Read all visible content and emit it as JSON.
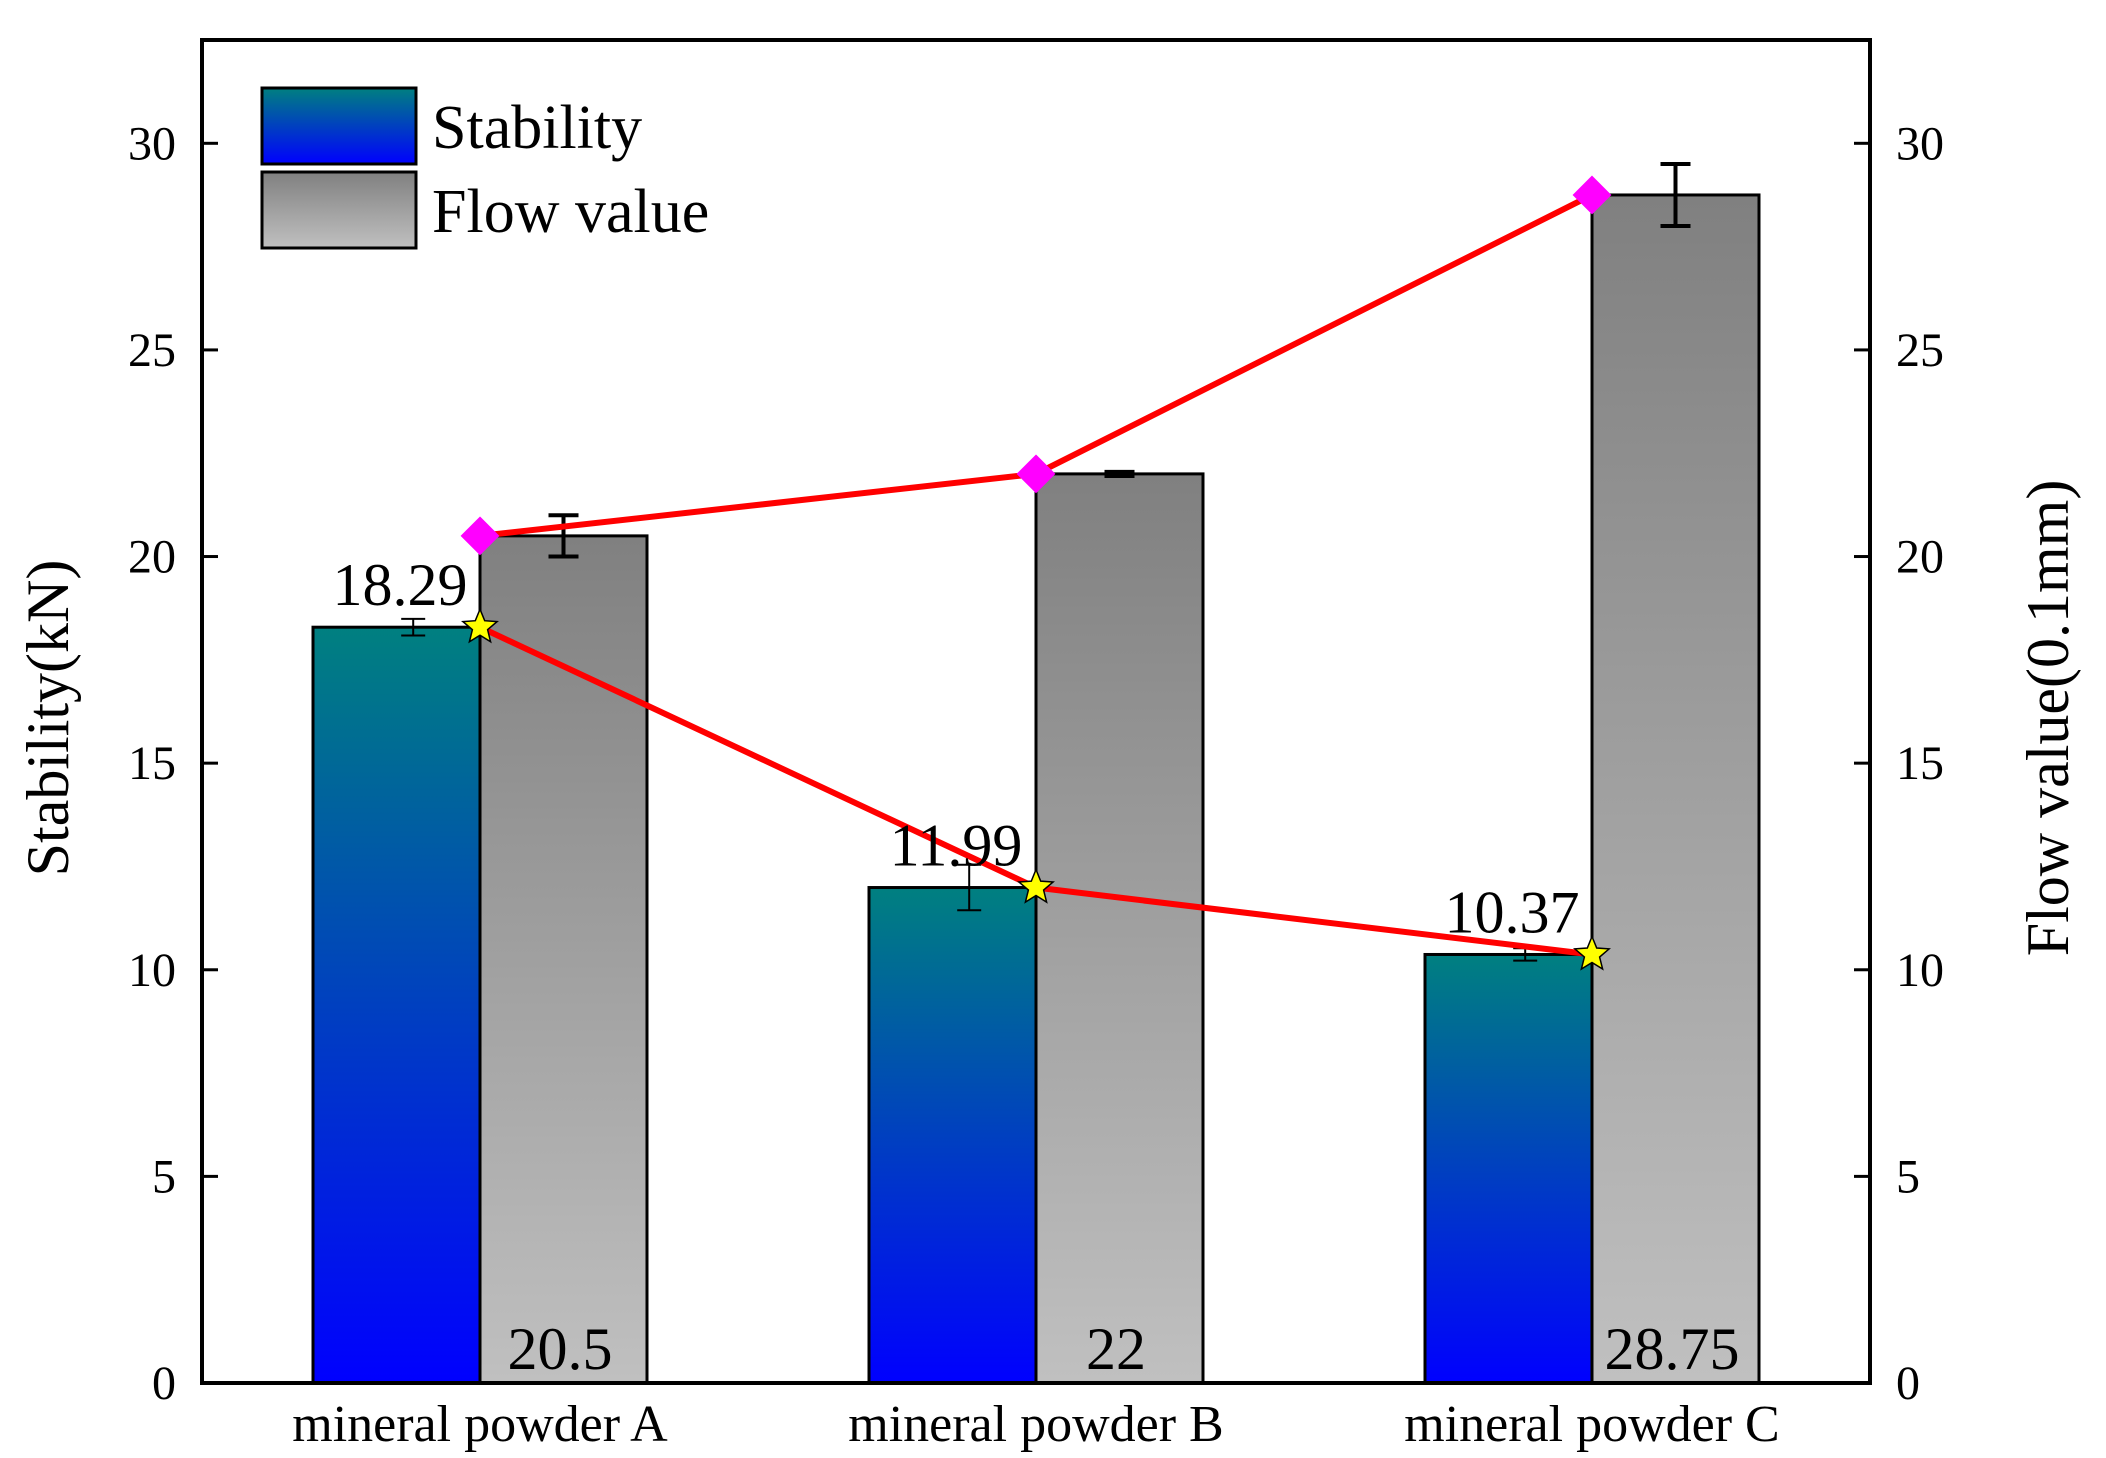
{
  "chart_data": {
    "type": "bar",
    "categories": [
      "mineral powder A",
      "mineral powder B",
      "mineral powder C"
    ],
    "series": [
      {
        "name": "Stability",
        "axis": "left",
        "values": [
          18.29,
          11.99,
          10.37
        ],
        "errors": [
          0.2,
          0.55,
          0.15
        ],
        "labels": [
          "18.29",
          "11.99",
          "10.37"
        ],
        "line_color": "#ff0000",
        "marker": "star",
        "marker_color": "#ffff00",
        "gradient": [
          "#008080",
          "#0000ff"
        ]
      },
      {
        "name": "Flow value",
        "axis": "right",
        "values": [
          20.5,
          22,
          28.75
        ],
        "errors": [
          0.5,
          0.05,
          0.75
        ],
        "labels": [
          "20.5",
          "22",
          "28.75"
        ],
        "line_color": "#ff0000",
        "marker": "diamond",
        "marker_color": "#ff00ff",
        "gradient": [
          "#808080",
          "#c0c0c0"
        ]
      }
    ],
    "ylabel": "Stability(kN)",
    "y2label": "Flow value(0.1mm)",
    "xlabel": "",
    "ylim": [
      0,
      32.5
    ],
    "y2lim": [
      0,
      32.5
    ],
    "yticks": [
      0,
      5,
      10,
      15,
      20,
      25,
      30
    ],
    "y2ticks": [
      0,
      5,
      10,
      15,
      20,
      25,
      30
    ],
    "legend_position": "top-left",
    "grid": false
  }
}
